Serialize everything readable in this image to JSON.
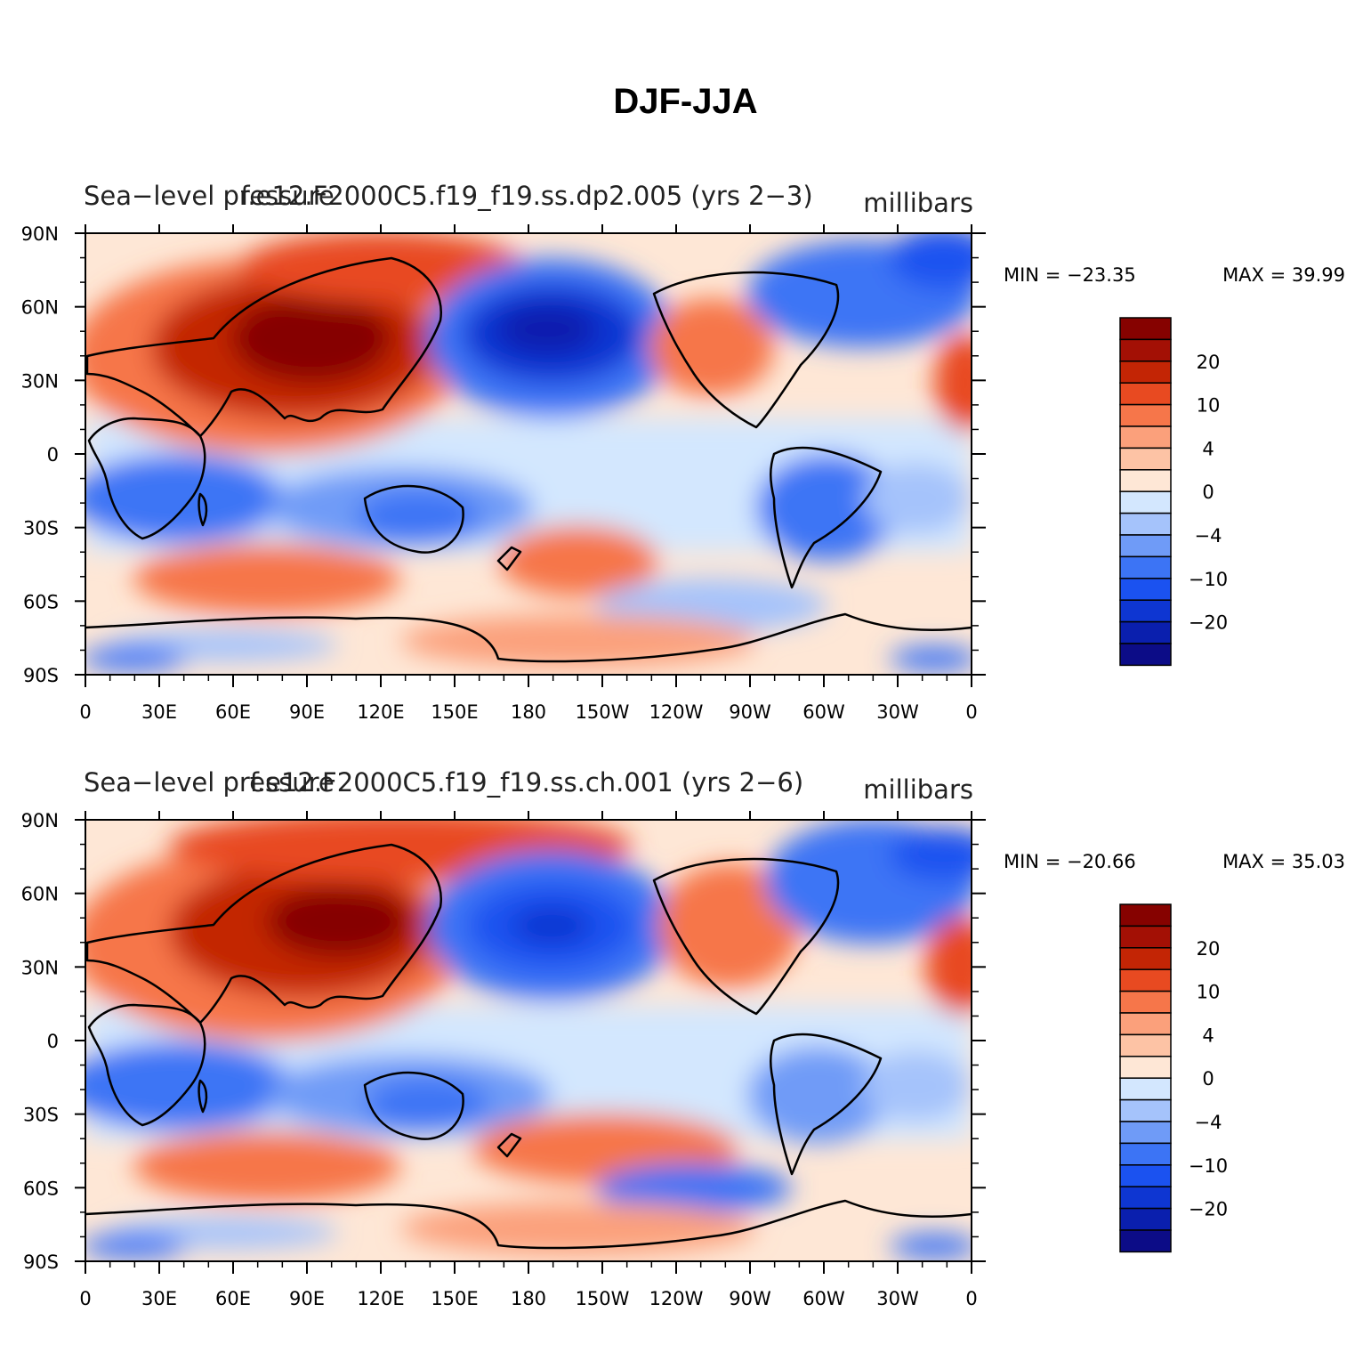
{
  "title": "DJF-JJA",
  "colors": {
    "levels": [
      "#0c0c87",
      "#0a1fae",
      "#0e36d2",
      "#1b52f0",
      "#3c74f5",
      "#6f9bf7",
      "#a5c3fb",
      "#d3e7fe",
      "#fee7d6",
      "#fdc3a5",
      "#fba07b",
      "#f6764a",
      "#e84a21",
      "#c32505",
      "#a31005",
      "#860200"
    ],
    "land_outline": "#000000"
  },
  "colorbar": {
    "labels": [
      "20",
      "10",
      "4",
      "0",
      "−4",
      "−10",
      "−20"
    ]
  },
  "axes": {
    "lat_ticks": [
      "90N",
      "60N",
      "30N",
      "0",
      "30S",
      "60S",
      "90S"
    ],
    "lon_ticks": [
      "0",
      "30E",
      "60E",
      "90E",
      "120E",
      "150E",
      "180",
      "150W",
      "120W",
      "90W",
      "60W",
      "30W",
      "0"
    ]
  },
  "panels": [
    {
      "left_label": "Sea−level pressure",
      "center_label": "f.e12.F2000C5.f19_f19.ss.dp2.005 (yrs 2−3)",
      "units": "millibars",
      "min_text": "MIN = −23.35",
      "max_text": "MAX =  39.99",
      "min": -23.35,
      "max": 39.99
    },
    {
      "left_label": "Sea−level pressure",
      "center_label": "f.e12.F2000C5.f19_f19.ss.ch.001 (yrs 2−6)",
      "units": "millibars",
      "min_text": "MIN = −20.66",
      "max_text": "MAX =  35.03",
      "min": -20.66,
      "max": 35.03
    }
  ]
}
